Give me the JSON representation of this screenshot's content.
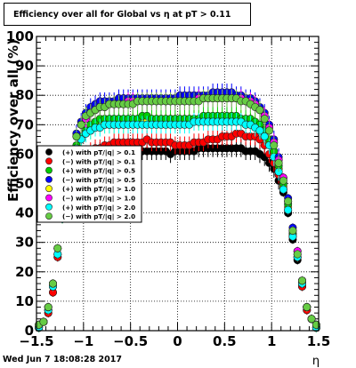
{
  "chart_data": {
    "type": "scatter",
    "title": "Efficiency over all for Global vs   η at pT > 0.11",
    "xlabel": "η",
    "ylabel": "Efficiency over all (%)",
    "xlim": [
      -1.5,
      1.5
    ],
    "ylim": [
      0,
      100
    ],
    "x_ticks": [
      "−1.5",
      "−1",
      "−0.5",
      "0",
      "0.5",
      "1",
      "1.5"
    ],
    "y_ticks": [
      "0",
      "10",
      "20",
      "30",
      "40",
      "50",
      "60",
      "70",
      "80",
      "90",
      "100"
    ],
    "grid": true,
    "legend_position": "left",
    "x": [
      -1.475,
      -1.425,
      -1.375,
      -1.325,
      -1.275,
      -1.225,
      -1.175,
      -1.125,
      -1.075,
      -1.025,
      -0.975,
      -0.925,
      -0.875,
      -0.825,
      -0.775,
      -0.725,
      -0.675,
      -0.625,
      -0.575,
      -0.525,
      -0.475,
      -0.425,
      -0.375,
      -0.325,
      -0.275,
      -0.225,
      -0.175,
      -0.125,
      -0.075,
      -0.025,
      0.025,
      0.075,
      0.125,
      0.175,
      0.225,
      0.275,
      0.325,
      0.375,
      0.425,
      0.475,
      0.525,
      0.575,
      0.625,
      0.675,
      0.725,
      0.775,
      0.825,
      0.875,
      0.925,
      0.975,
      1.025,
      1.075,
      1.125,
      1.175,
      1.225,
      1.275,
      1.325,
      1.375,
      1.425,
      1.475
    ],
    "series": [
      {
        "name": "(+) with pT/|q| > 0.1",
        "color": "#000000",
        "values": [
          1,
          3,
          6,
          13,
          25,
          38,
          48,
          55,
          58,
          59,
          60,
          60,
          61,
          61,
          61,
          61,
          61,
          61,
          61,
          61,
          61,
          61,
          61,
          61,
          61,
          61,
          61,
          61,
          60,
          61,
          61,
          61,
          61,
          61,
          62,
          62,
          62,
          62,
          62,
          62,
          62,
          62,
          62,
          62,
          61,
          61,
          61,
          60,
          59,
          57,
          55,
          51,
          47,
          40,
          31,
          24,
          15,
          7,
          4,
          1
        ]
      },
      {
        "name": "(−) with pT/|q| > 0.1",
        "color": "#ff0000",
        "values": [
          1,
          3,
          6,
          13,
          25,
          38,
          48,
          55,
          58,
          59,
          60,
          61,
          62,
          62,
          63,
          63,
          64,
          64,
          64,
          64,
          64,
          64,
          64,
          65,
          64,
          64,
          64,
          64,
          64,
          63,
          63,
          63,
          63,
          64,
          64,
          64,
          65,
          65,
          65,
          66,
          66,
          66,
          67,
          67,
          66,
          66,
          66,
          65,
          63,
          60,
          57,
          53,
          48,
          41,
          32,
          25,
          15,
          7,
          4,
          1
        ]
      },
      {
        "name": "(+) with pT/|q| > 0.5",
        "color": "#00cc00",
        "values": [
          1,
          3,
          7,
          15,
          26,
          38,
          50,
          57,
          63,
          66,
          68,
          70,
          71,
          72,
          72,
          72,
          72,
          72,
          72,
          72,
          72,
          72,
          73,
          73,
          72,
          72,
          72,
          72,
          72,
          72,
          72,
          72,
          72,
          72,
          72,
          73,
          73,
          73,
          73,
          73,
          73,
          73,
          73,
          72,
          72,
          72,
          71,
          70,
          68,
          65,
          61,
          56,
          50,
          43,
          33,
          26,
          16,
          8,
          4,
          1
        ]
      },
      {
        "name": "(−) with pT/|q| > 0.5",
        "color": "#0000ff",
        "values": [
          2,
          3,
          8,
          16,
          28,
          40,
          53,
          61,
          67,
          71,
          74,
          76,
          77,
          78,
          78,
          78,
          78,
          79,
          79,
          79,
          79,
          79,
          79,
          79,
          79,
          79,
          79,
          79,
          79,
          79,
          80,
          80,
          80,
          80,
          80,
          80,
          80,
          81,
          81,
          81,
          81,
          81,
          80,
          80,
          79,
          79,
          78,
          76,
          74,
          70,
          65,
          59,
          52,
          45,
          35,
          27,
          17,
          8,
          4,
          2
        ]
      },
      {
        "name": "(+) with pT/|q| > 1.0",
        "color": "#ffff00",
        "values": [
          1,
          3,
          7,
          15,
          26,
          38,
          50,
          57,
          62,
          65,
          67,
          68,
          69,
          70,
          70,
          70,
          70,
          70,
          70,
          71,
          71,
          71,
          71,
          71,
          71,
          71,
          71,
          71,
          71,
          71,
          71,
          71,
          71,
          71,
          71,
          72,
          72,
          72,
          72,
          72,
          72,
          72,
          72,
          72,
          71,
          71,
          70,
          69,
          67,
          64,
          60,
          55,
          49,
          42,
          33,
          25,
          16,
          8,
          4,
          1
        ]
      },
      {
        "name": "(−) with pT/|q| > 1.0",
        "color": "#ff00ff",
        "values": [
          2,
          3,
          8,
          16,
          28,
          40,
          53,
          61,
          66,
          70,
          72,
          74,
          75,
          76,
          76,
          77,
          77,
          77,
          77,
          78,
          78,
          78,
          78,
          78,
          78,
          78,
          78,
          78,
          78,
          78,
          78,
          78,
          78,
          78,
          79,
          79,
          79,
          79,
          79,
          79,
          79,
          79,
          79,
          79,
          78,
          78,
          77,
          75,
          73,
          69,
          64,
          58,
          52,
          44,
          34,
          27,
          17,
          8,
          4,
          2
        ]
      },
      {
        "name": "(+) with pT/|q| > 2.0",
        "color": "#00ffff",
        "values": [
          1,
          3,
          7,
          15,
          26,
          38,
          50,
          57,
          62,
          65,
          67,
          68,
          69,
          69,
          70,
          70,
          70,
          70,
          70,
          70,
          70,
          70,
          70,
          70,
          70,
          70,
          70,
          70,
          70,
          70,
          70,
          70,
          70,
          71,
          71,
          71,
          71,
          71,
          71,
          71,
          71,
          71,
          71,
          71,
          70,
          70,
          69,
          68,
          66,
          63,
          59,
          54,
          48,
          41,
          32,
          25,
          16,
          8,
          4,
          1
        ]
      },
      {
        "name": "(−) with pT/|q| > 2.0",
        "color": "#66cc44",
        "values": [
          2,
          3,
          8,
          16,
          28,
          40,
          53,
          61,
          66,
          70,
          73,
          74,
          75,
          76,
          76,
          77,
          77,
          77,
          77,
          77,
          77,
          78,
          78,
          78,
          78,
          78,
          78,
          78,
          78,
          78,
          78,
          78,
          78,
          78,
          78,
          79,
          79,
          79,
          79,
          79,
          79,
          79,
          79,
          78,
          78,
          77,
          76,
          75,
          72,
          68,
          63,
          57,
          51,
          44,
          34,
          26,
          17,
          8,
          4,
          2
        ]
      }
    ]
  },
  "footer": {
    "timestamp": "Wed Jun  7 18:08:28 2017"
  }
}
